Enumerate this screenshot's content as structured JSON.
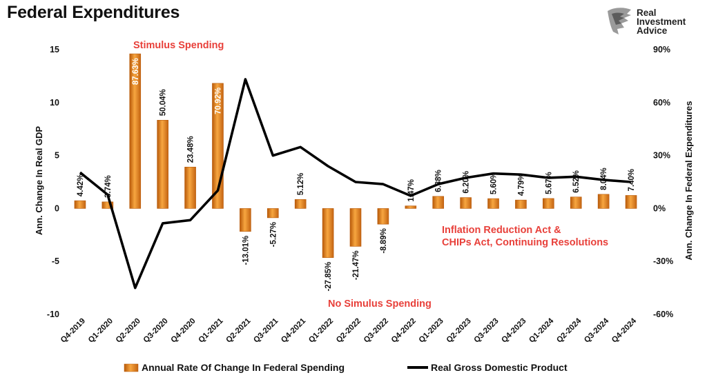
{
  "title": "Federal Expenditures",
  "logo": {
    "line1": "Real",
    "line2": "Investment",
    "line3": "Advice"
  },
  "colors": {
    "bar": "#f28e1c",
    "bar_dark": "#b85a0a",
    "line": "#000000",
    "annotation": "#e8403a"
  },
  "chart_data": {
    "type": "bar",
    "categories": [
      "Q4-2019",
      "Q1-2020",
      "Q2-2020",
      "Q3-2020",
      "Q4-2020",
      "Q1-2021",
      "Q2-2021",
      "Q3-2021",
      "Q4-2021",
      "Q1-2022",
      "Q2-2022",
      "Q3-2022",
      "Q4-2022",
      "Q1-2023",
      "Q2-2023",
      "Q3-2023",
      "Q4-2023",
      "Q1-2024",
      "Q2-2024",
      "Q3-2024",
      "Q4-2024"
    ],
    "series": [
      {
        "name": "Annual Rate Of Change In Federal Spending",
        "type": "bar",
        "axis": "right",
        "values": [
          4.42,
          3.74,
          87.63,
          50.04,
          23.48,
          70.92,
          -13.01,
          -5.27,
          5.12,
          -27.85,
          -21.47,
          -8.89,
          1.47,
          6.88,
          6.2,
          5.6,
          4.79,
          5.67,
          6.52,
          8.04,
          7.4
        ],
        "labels": [
          "4.42%",
          "3.74%",
          "87.63%",
          "50.04%",
          "23.48%",
          "70.92%",
          "-13.01%",
          "-5.27%",
          "5.12%",
          "-27.85%",
          "-21.47%",
          "-8.89%",
          "1.47%",
          "6.88%",
          "6.20%",
          "5.60%",
          "4.79%",
          "5.67%",
          "6.52%",
          "8.04%",
          "7.40%"
        ]
      },
      {
        "name": "Real Gross Domestic Product",
        "type": "line",
        "axis": "left",
        "values": [
          3.4,
          1.3,
          -7.5,
          -1.4,
          -1.1,
          1.7,
          12.2,
          5.0,
          5.8,
          4.0,
          2.5,
          2.3,
          1.2,
          2.3,
          2.9,
          3.3,
          3.2,
          2.9,
          3.0,
          2.7,
          2.5
        ]
      }
    ],
    "y_left": {
      "label": "Ann. Change In Real GDP",
      "min": -10,
      "max": 15,
      "ticks": [
        "15",
        "10",
        "5",
        "0",
        "-5",
        "-10"
      ]
    },
    "y_right": {
      "label": "Ann. Change In Federal Expenditures",
      "min": -60,
      "max": 90,
      "ticks": [
        "90%",
        "60%",
        "30%",
        "0%",
        "-30%",
        "-60%"
      ]
    },
    "annotations": {
      "stimulus": "Stimulus Spending",
      "no_stimulus": "No Simulus Spending",
      "ira_line1": "Inflation Reduction Act &",
      "ira_line2": "CHIPs Act, Continuing Resolutions"
    },
    "legend_position": "bottom",
    "grid": false
  }
}
